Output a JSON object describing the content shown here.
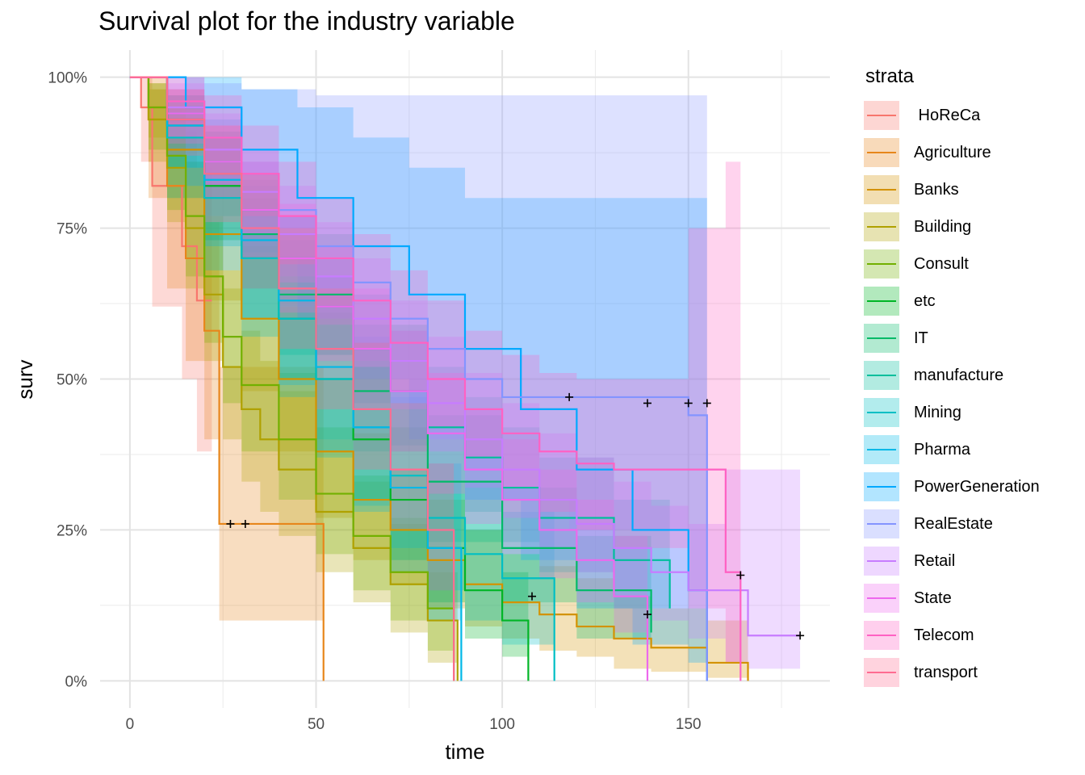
{
  "chart_data": {
    "type": "line",
    "title": "Survival plot for the industry variable",
    "xlabel": "time",
    "ylabel": "surv",
    "xlim": [
      -8,
      188
    ],
    "ylim": [
      -0.045,
      1.045
    ],
    "x_ticks": [
      0,
      50,
      100,
      150
    ],
    "x_tick_labels": [
      "0",
      "50",
      "100",
      "150"
    ],
    "y_ticks": [
      0,
      0.25,
      0.5,
      0.75,
      1.0
    ],
    "y_tick_labels": [
      "0%",
      "25%",
      "50%",
      "75%",
      "100%"
    ],
    "grid": true,
    "legend_title": "strata",
    "legend_position": "right",
    "series": [
      {
        "name": " HoReCa",
        "color": "#F8766D",
        "x": [
          0,
          3,
          6,
          10,
          14,
          18,
          22
        ],
        "y": [
          1.0,
          0.95,
          0.82,
          0.82,
          0.72,
          0.63,
          0.63
        ],
        "upper": [
          1.0,
          1.0,
          0.98,
          0.97,
          0.91,
          0.85,
          0.85
        ],
        "lower": [
          1.0,
          0.86,
          0.62,
          0.62,
          0.5,
          0.38,
          0.38
        ]
      },
      {
        "name": "Agriculture",
        "color": "#E7861B",
        "x": [
          0,
          5,
          10,
          15,
          20,
          24,
          52
        ],
        "y": [
          1.0,
          0.93,
          0.82,
          0.7,
          0.58,
          0.26,
          0.0
        ],
        "upper": [
          1.0,
          1.0,
          0.95,
          0.86,
          0.76,
          0.52,
          0.52
        ],
        "lower": [
          1.0,
          0.8,
          0.65,
          0.53,
          0.4,
          0.1,
          0.1
        ],
        "censor_x": [
          27,
          31
        ],
        "censor_y": [
          0.26,
          0.26
        ]
      },
      {
        "name": "Banks",
        "color": "#D39200",
        "x": [
          0,
          5,
          10,
          20,
          30,
          40,
          50,
          60,
          70,
          80,
          90,
          100,
          110,
          120,
          130,
          140,
          155,
          166
        ],
        "y": [
          1.0,
          0.95,
          0.88,
          0.74,
          0.6,
          0.5,
          0.38,
          0.3,
          0.25,
          0.2,
          0.16,
          0.13,
          0.11,
          0.09,
          0.07,
          0.055,
          0.03,
          0.0
        ],
        "upper": [
          1.0,
          0.99,
          0.95,
          0.84,
          0.72,
          0.62,
          0.5,
          0.41,
          0.35,
          0.3,
          0.25,
          0.21,
          0.19,
          0.17,
          0.14,
          0.12,
          0.1,
          0.1
        ],
        "lower": [
          1.0,
          0.9,
          0.8,
          0.63,
          0.48,
          0.38,
          0.27,
          0.2,
          0.16,
          0.12,
          0.09,
          0.07,
          0.05,
          0.04,
          0.02,
          0.015,
          0.005,
          0.005
        ],
        "censor_x": [
          108,
          139
        ],
        "censor_y": [
          0.14,
          0.11
        ]
      },
      {
        "name": "Building",
        "color": "#AFA100",
        "x": [
          0,
          5,
          10,
          15,
          20,
          25,
          30,
          35,
          40,
          50,
          60,
          70,
          80,
          88
        ],
        "y": [
          1.0,
          0.93,
          0.85,
          0.75,
          0.64,
          0.52,
          0.45,
          0.4,
          0.35,
          0.28,
          0.22,
          0.16,
          0.1,
          0.0
        ],
        "upper": [
          1.0,
          0.98,
          0.93,
          0.85,
          0.76,
          0.65,
          0.58,
          0.53,
          0.48,
          0.4,
          0.33,
          0.26,
          0.18,
          0.18
        ],
        "lower": [
          1.0,
          0.86,
          0.76,
          0.65,
          0.53,
          0.4,
          0.33,
          0.28,
          0.24,
          0.18,
          0.13,
          0.08,
          0.03,
          0.03
        ]
      },
      {
        "name": "Consult",
        "color": "#72B000",
        "x": [
          0,
          5,
          10,
          15,
          20,
          25,
          30,
          40,
          50,
          60,
          70,
          80,
          87
        ],
        "y": [
          1.0,
          0.95,
          0.87,
          0.77,
          0.67,
          0.57,
          0.49,
          0.4,
          0.31,
          0.24,
          0.18,
          0.12,
          0.0
        ],
        "upper": [
          1.0,
          0.99,
          0.94,
          0.86,
          0.77,
          0.68,
          0.6,
          0.51,
          0.42,
          0.34,
          0.27,
          0.2,
          0.2
        ],
        "lower": [
          1.0,
          0.88,
          0.78,
          0.67,
          0.56,
          0.46,
          0.38,
          0.3,
          0.21,
          0.15,
          0.1,
          0.05,
          0.05
        ]
      },
      {
        "name": "etc",
        "color": "#00B526",
        "x": [
          0,
          10,
          20,
          30,
          40,
          50,
          60,
          70,
          80,
          90,
          100,
          107
        ],
        "y": [
          1.0,
          0.92,
          0.82,
          0.7,
          0.6,
          0.5,
          0.4,
          0.3,
          0.22,
          0.15,
          0.1,
          0.0
        ],
        "upper": [
          1.0,
          0.97,
          0.9,
          0.8,
          0.7,
          0.61,
          0.52,
          0.42,
          0.33,
          0.25,
          0.18,
          0.18
        ],
        "lower": [
          1.0,
          0.85,
          0.73,
          0.6,
          0.5,
          0.4,
          0.3,
          0.2,
          0.13,
          0.07,
          0.04,
          0.04
        ]
      },
      {
        "name": "IT",
        "color": "#00BA68",
        "x": [
          0,
          10,
          20,
          30,
          40,
          60,
          80,
          100,
          120,
          140
        ],
        "y": [
          1.0,
          0.93,
          0.84,
          0.74,
          0.64,
          0.48,
          0.33,
          0.22,
          0.15,
          0.08
        ],
        "upper": [
          1.0,
          0.97,
          0.91,
          0.83,
          0.74,
          0.59,
          0.44,
          0.32,
          0.24,
          0.16
        ],
        "lower": [
          1.0,
          0.88,
          0.77,
          0.65,
          0.54,
          0.38,
          0.23,
          0.13,
          0.07,
          0.03
        ]
      },
      {
        "name": "manufacture",
        "color": "#00BE9C",
        "x": [
          0,
          10,
          20,
          30,
          40,
          50,
          60,
          70,
          80,
          90,
          100,
          110,
          130,
          145
        ],
        "y": [
          1.0,
          0.94,
          0.86,
          0.78,
          0.7,
          0.62,
          0.55,
          0.48,
          0.42,
          0.37,
          0.32,
          0.27,
          0.2,
          0.12
        ],
        "upper": [
          1.0,
          0.97,
          0.91,
          0.84,
          0.77,
          0.7,
          0.64,
          0.58,
          0.52,
          0.47,
          0.42,
          0.37,
          0.3,
          0.22
        ],
        "lower": [
          1.0,
          0.9,
          0.8,
          0.71,
          0.62,
          0.54,
          0.46,
          0.39,
          0.33,
          0.28,
          0.23,
          0.18,
          0.12,
          0.06
        ]
      },
      {
        "name": "Mining",
        "color": "#00BFC4",
        "x": [
          0,
          10,
          20,
          30,
          40,
          50,
          60,
          70,
          80,
          90,
          100,
          114
        ],
        "y": [
          1.0,
          0.9,
          0.8,
          0.7,
          0.6,
          0.5,
          0.42,
          0.34,
          0.27,
          0.21,
          0.17,
          0.0
        ],
        "upper": [
          1.0,
          0.97,
          0.9,
          0.82,
          0.73,
          0.64,
          0.56,
          0.48,
          0.4,
          0.33,
          0.28,
          0.28
        ],
        "lower": [
          1.0,
          0.8,
          0.68,
          0.57,
          0.47,
          0.37,
          0.29,
          0.22,
          0.15,
          0.1,
          0.06,
          0.06
        ]
      },
      {
        "name": "Pharma",
        "color": "#00B8E7",
        "x": [
          0,
          10,
          20,
          30,
          40,
          50,
          60,
          70,
          80,
          89
        ],
        "y": [
          1.0,
          0.92,
          0.83,
          0.73,
          0.63,
          0.52,
          0.42,
          0.32,
          0.22,
          0.0
        ],
        "upper": [
          1.0,
          0.98,
          0.93,
          0.86,
          0.77,
          0.67,
          0.57,
          0.47,
          0.36,
          0.36
        ],
        "lower": [
          1.0,
          0.85,
          0.72,
          0.6,
          0.49,
          0.38,
          0.28,
          0.18,
          0.1,
          0.1
        ]
      },
      {
        "name": "PowerGeneration",
        "color": "#00A9FF",
        "x": [
          0,
          15,
          30,
          45,
          60,
          75,
          90,
          105,
          120,
          135,
          150,
          155
        ],
        "y": [
          1.0,
          0.95,
          0.88,
          0.8,
          0.72,
          0.64,
          0.55,
          0.45,
          0.35,
          0.25,
          0.15,
          0.0
        ],
        "upper": [
          1.0,
          1.0,
          0.98,
          0.95,
          0.9,
          0.85,
          0.8,
          0.8,
          0.8,
          0.8,
          0.8,
          0.8
        ],
        "lower": [
          1.0,
          0.82,
          0.7,
          0.6,
          0.5,
          0.4,
          0.3,
          0.2,
          0.12,
          0.06,
          0.03,
          0.03
        ]
      },
      {
        "name": "RealEstate",
        "color": "#8494FF",
        "x": [
          0,
          10,
          20,
          30,
          40,
          50,
          60,
          70,
          80,
          90,
          100,
          118,
          150,
          155
        ],
        "y": [
          1.0,
          0.96,
          0.9,
          0.84,
          0.78,
          0.72,
          0.66,
          0.6,
          0.55,
          0.5,
          0.47,
          0.47,
          0.44,
          0.0
        ],
        "upper": [
          1.0,
          1.0,
          0.99,
          0.98,
          0.98,
          0.97,
          0.97,
          0.97,
          0.97,
          0.97,
          0.97,
          0.97,
          0.97,
          0.97
        ],
        "lower": [
          1.0,
          0.9,
          0.82,
          0.74,
          0.67,
          0.6,
          0.53,
          0.46,
          0.4,
          0.35,
          0.3,
          0.25,
          0.15,
          0.15
        ],
        "censor_x": [
          118,
          139,
          150,
          155
        ],
        "censor_y": [
          0.47,
          0.46,
          0.46,
          0.46
        ]
      },
      {
        "name": "Retail",
        "color": "#C77CFF",
        "x": [
          0,
          10,
          20,
          30,
          40,
          50,
          60,
          70,
          80,
          90,
          100,
          110,
          120,
          130,
          140,
          150,
          160,
          166,
          180
        ],
        "y": [
          1.0,
          0.95,
          0.88,
          0.81,
          0.74,
          0.67,
          0.6,
          0.53,
          0.46,
          0.4,
          0.35,
          0.3,
          0.26,
          0.22,
          0.18,
          0.15,
          0.15,
          0.075,
          0.075
        ],
        "upper": [
          1.0,
          0.99,
          0.94,
          0.88,
          0.82,
          0.76,
          0.7,
          0.63,
          0.57,
          0.51,
          0.46,
          0.41,
          0.37,
          0.33,
          0.29,
          0.26,
          0.35,
          0.35,
          0.35
        ],
        "lower": [
          1.0,
          0.9,
          0.82,
          0.74,
          0.66,
          0.59,
          0.52,
          0.45,
          0.38,
          0.32,
          0.27,
          0.22,
          0.18,
          0.14,
          0.1,
          0.07,
          0.03,
          0.02,
          0.02
        ],
        "censor_x": [
          180
        ],
        "censor_y": [
          0.075
        ]
      },
      {
        "name": "State",
        "color": "#ED68ED",
        "x": [
          0,
          10,
          20,
          30,
          40,
          50,
          60,
          70,
          80,
          90,
          100,
          110,
          120,
          130,
          139
        ],
        "y": [
          1.0,
          0.94,
          0.86,
          0.78,
          0.7,
          0.62,
          0.55,
          0.48,
          0.41,
          0.35,
          0.3,
          0.25,
          0.2,
          0.14,
          0.0
        ],
        "upper": [
          1.0,
          0.98,
          0.92,
          0.86,
          0.79,
          0.72,
          0.65,
          0.58,
          0.51,
          0.45,
          0.4,
          0.35,
          0.3,
          0.24,
          0.24
        ],
        "lower": [
          1.0,
          0.89,
          0.8,
          0.7,
          0.61,
          0.53,
          0.45,
          0.38,
          0.31,
          0.26,
          0.21,
          0.17,
          0.13,
          0.08,
          0.08
        ]
      },
      {
        "name": "Telecom",
        "color": "#FF61C3",
        "x": [
          0,
          10,
          20,
          30,
          40,
          50,
          60,
          70,
          80,
          90,
          100,
          110,
          120,
          130,
          150,
          160,
          164
        ],
        "y": [
          1.0,
          0.96,
          0.9,
          0.84,
          0.77,
          0.7,
          0.63,
          0.56,
          0.5,
          0.45,
          0.41,
          0.38,
          0.36,
          0.35,
          0.35,
          0.18,
          0.0
        ],
        "upper": [
          1.0,
          1.0,
          0.97,
          0.92,
          0.86,
          0.8,
          0.74,
          0.68,
          0.63,
          0.58,
          0.54,
          0.51,
          0.5,
          0.5,
          0.75,
          0.86,
          0.86
        ],
        "lower": [
          1.0,
          0.92,
          0.84,
          0.77,
          0.69,
          0.62,
          0.55,
          0.48,
          0.42,
          0.37,
          0.32,
          0.28,
          0.25,
          0.22,
          0.12,
          0.03,
          0.03
        ],
        "censor_x": [
          164
        ],
        "censor_y": [
          0.175
        ]
      },
      {
        "name": "transport",
        "color": "#FF6C91",
        "x": [
          0,
          10,
          20,
          30,
          40,
          50,
          60,
          70,
          80,
          87
        ],
        "y": [
          1.0,
          0.93,
          0.84,
          0.75,
          0.65,
          0.55,
          0.45,
          0.35,
          0.25,
          0.0
        ],
        "upper": [
          1.0,
          0.98,
          0.92,
          0.84,
          0.75,
          0.65,
          0.56,
          0.46,
          0.36,
          0.36
        ],
        "lower": [
          1.0,
          0.87,
          0.76,
          0.65,
          0.55,
          0.45,
          0.35,
          0.25,
          0.15,
          0.15
        ]
      }
    ]
  }
}
